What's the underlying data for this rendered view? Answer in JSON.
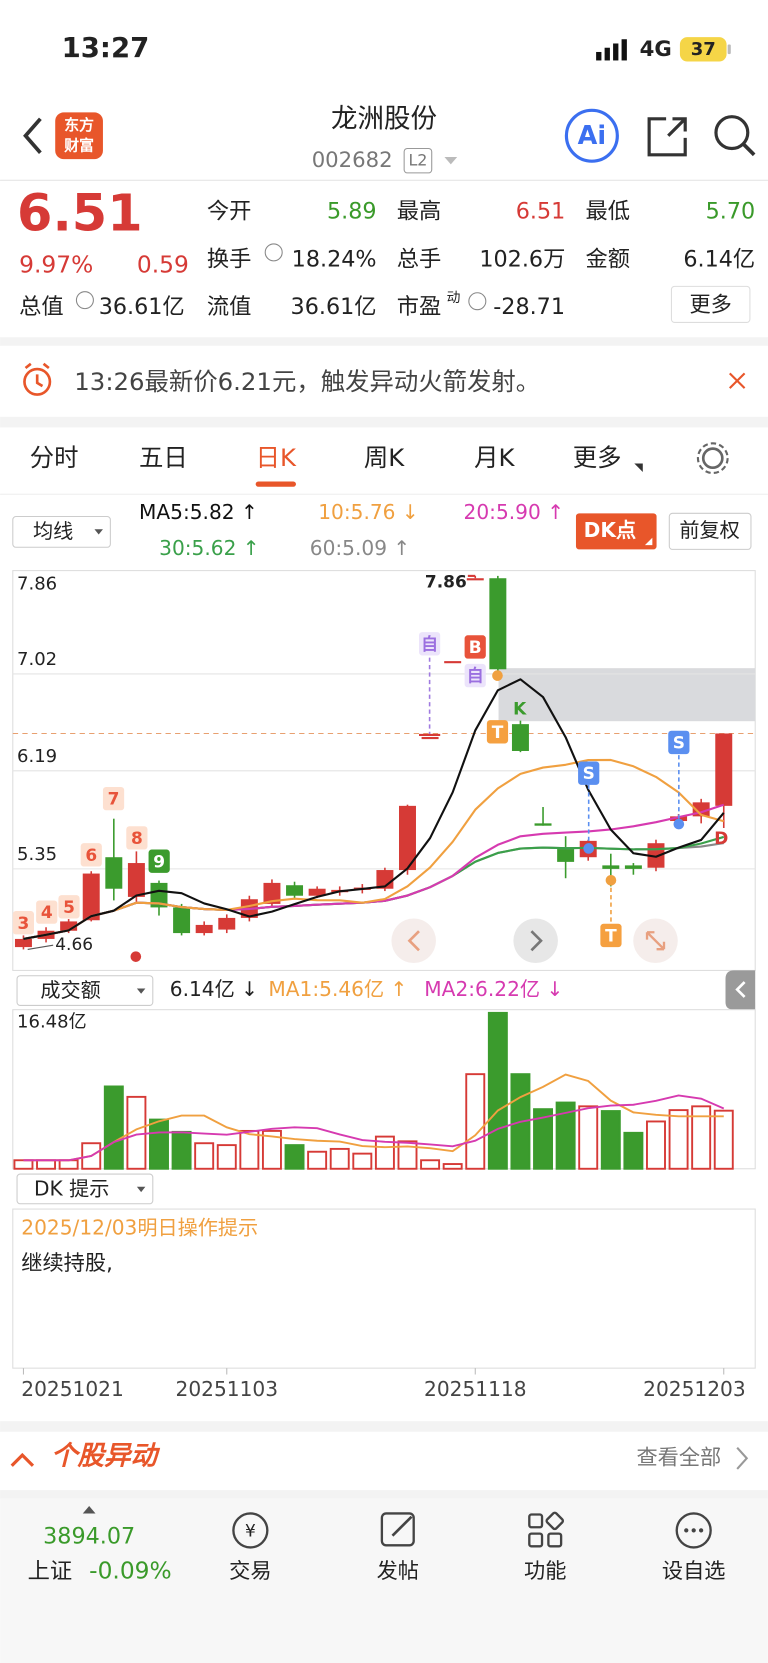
{
  "status": {
    "time": "13:27",
    "network": "4G",
    "battery": "37"
  },
  "header": {
    "logo": [
      "东方",
      "财富"
    ],
    "title": "龙洲股份",
    "code": "002682",
    "level": "L2"
  },
  "quote": {
    "price": "6.51",
    "change_pct": "9.97%",
    "change": "0.59",
    "more": "更多",
    "fields": [
      {
        "label": "今开",
        "value": "5.89"
      },
      {
        "label": "最高",
        "value": "6.51"
      },
      {
        "label": "最低",
        "value": "5.70"
      },
      {
        "label": "换手",
        "value": "18.24%"
      },
      {
        "label": "总手",
        "value": "102.6万"
      },
      {
        "label": "金额",
        "value": "6.14亿"
      },
      {
        "label": "总值",
        "value": "36.61亿"
      },
      {
        "label": "流值",
        "value": "36.61亿"
      },
      {
        "label": "市盈",
        "sup": "动",
        "value": "-28.71"
      }
    ]
  },
  "alert": {
    "text": "13:26最新价6.21元，触发异动火箭发射。"
  },
  "tabs": {
    "items": [
      "分时",
      "五日",
      "日K",
      "周K",
      "月K",
      "更多"
    ],
    "active": 2
  },
  "ma_bar": {
    "selector": "均线",
    "entries": [
      "MA5:5.82 ↑",
      "10:5.76 ↓",
      "20:5.90 ↑",
      "30:5.62 ↑",
      "60:5.09 ↑"
    ],
    "buttons": [
      "DK点",
      "前复权"
    ]
  },
  "chart_data": [
    {
      "type": "candlestick",
      "categories": [
        "20251021",
        null,
        null,
        null,
        null,
        null,
        null,
        null,
        null,
        "20251103",
        null,
        null,
        null,
        null,
        null,
        null,
        null,
        null,
        null,
        null,
        "20251118",
        null,
        null,
        null,
        null,
        null,
        null,
        null,
        null,
        null,
        null,
        "20251203"
      ],
      "open": [
        4.68,
        4.75,
        4.82,
        4.91,
        5.45,
        5.11,
        5.23,
        5.02,
        4.8,
        4.83,
        4.93,
        5.05,
        5.21,
        5.12,
        5.15,
        5.17,
        5.18,
        5.34,
        6.48,
        7.13,
        7.84,
        7.84,
        6.59,
        5.74,
        5.52,
        5.45,
        5.38,
        5.38,
        5.36,
        5.76,
        5.8,
        5.89
      ],
      "high": [
        4.78,
        4.85,
        4.92,
        5.33,
        5.78,
        5.5,
        5.25,
        5.05,
        4.9,
        4.96,
        5.12,
        5.26,
        5.24,
        5.2,
        5.2,
        5.22,
        5.36,
        5.9,
        6.48,
        7.13,
        7.86,
        7.86,
        6.62,
        5.88,
        5.63,
        5.6,
        5.48,
        5.4,
        5.6,
        5.82,
        5.95,
        6.51
      ],
      "low": [
        4.66,
        4.72,
        4.8,
        4.9,
        5.08,
        5.05,
        4.95,
        4.78,
        4.78,
        4.8,
        4.9,
        5.02,
        5.1,
        5.1,
        5.12,
        5.14,
        5.16,
        5.3,
        6.48,
        7.13,
        7.84,
        7.0,
        6.35,
        5.72,
        5.27,
        5.42,
        5.2,
        5.3,
        5.33,
        5.7,
        5.74,
        5.7
      ],
      "close": [
        4.75,
        4.82,
        4.9,
        5.31,
        5.18,
        5.4,
        5.02,
        4.8,
        4.87,
        4.93,
        5.09,
        5.23,
        5.12,
        5.18,
        5.17,
        5.19,
        5.34,
        5.89,
        6.48,
        7.13,
        7.84,
        7.06,
        6.36,
        5.72,
        5.41,
        5.59,
        5.35,
        5.35,
        5.57,
        5.8,
        5.92,
        6.51
      ],
      "up_color": "#d63a36",
      "down_color": "#3b9b2d",
      "ma_periods": [
        5,
        10,
        20,
        30,
        60
      ],
      "ma_colors": [
        "#111111",
        "#f0a040",
        "#d63ab0",
        "#3aa04a",
        "#888888"
      ],
      "ylim": [
        4.48,
        7.86
      ],
      "yticks": [
        7.86,
        7.02,
        6.19,
        5.35
      ],
      "grid": true,
      "high_label": 7.86,
      "low_label": 4.66,
      "markers": [
        "3",
        "4",
        "5",
        "6",
        "7",
        "8",
        "9",
        "自",
        "B",
        "自",
        "T",
        "K",
        "S",
        "T",
        "S",
        "D"
      ]
    },
    {
      "type": "bar",
      "selector": "成交额",
      "legend": [
        "6.14亿 ↓",
        "MA1:5.46亿 ↑",
        "MA2:6.22亿 ↓"
      ],
      "values": [
        0.9,
        0.9,
        0.9,
        2.7,
        8.7,
        7.6,
        5.2,
        3.9,
        2.7,
        2.5,
        4.0,
        4.0,
        2.5,
        1.8,
        2.1,
        1.6,
        3.4,
        2.9,
        0.9,
        0.5,
        10.0,
        16.48,
        10.0,
        6.3,
        7.0,
        6.6,
        6.1,
        3.8,
        5.0,
        6.2,
        6.6,
        6.14
      ],
      "ma_periods": [
        5,
        10
      ],
      "ma_colors": [
        "#f0a040",
        "#d63ab0"
      ],
      "ylim": [
        0,
        16.48
      ],
      "yticks": [
        {
          "value": 16.48,
          "label": "16.48亿"
        }
      ]
    }
  ],
  "dk": {
    "selector": "DK 提示",
    "date": "2025/12/03明日操作提示",
    "text": "继续持股,"
  },
  "section": {
    "title": "个股异动",
    "link": "查看全部"
  },
  "nav": {
    "index_value": "3894.07",
    "index_name": "上证",
    "index_change": "-0.09%",
    "items": [
      "交易",
      "发帖",
      "功能",
      "设自选"
    ]
  }
}
